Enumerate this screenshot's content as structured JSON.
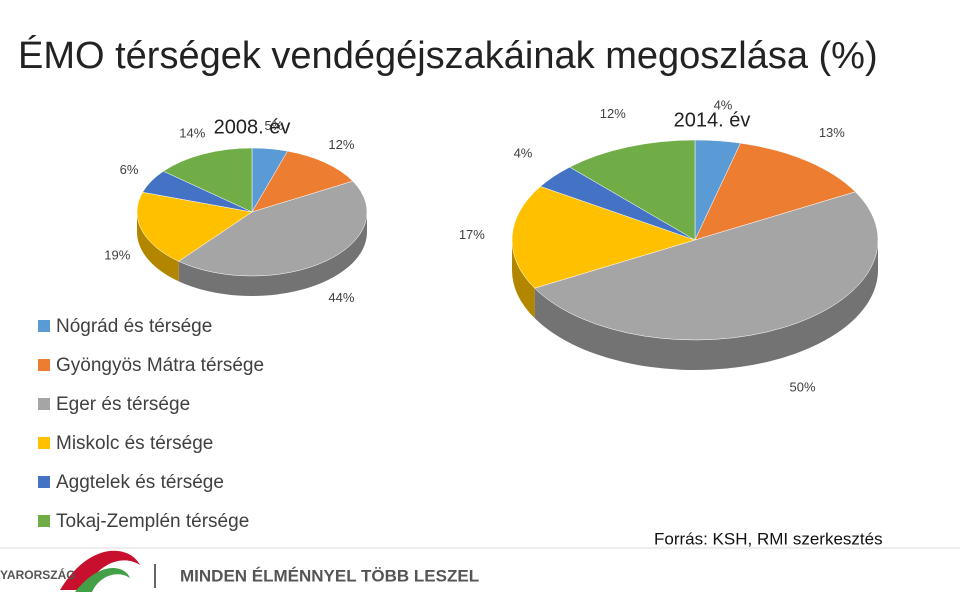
{
  "title": "ÉMO térségek vendégéjszakáinak megoszlása (%)",
  "chart_data": [
    {
      "type": "pie",
      "title": "2008. év",
      "categories": [
        "Nógrád és térsége",
        "Gyöngyös Mátra térsége",
        "Eger és térsége",
        "Miskolc és térsége",
        "Aggtelek és térsége",
        "Tokaj-Zemplén térsége"
      ],
      "values": [
        5,
        12,
        44,
        19,
        6,
        14
      ],
      "value_labels": [
        "5%",
        "12%",
        "44%",
        "19%",
        "6%",
        "14%"
      ],
      "colors": [
        "#5b9bd5",
        "#ed7d31",
        "#a5a5a5",
        "#ffc000",
        "#4472c4",
        "#70ad47"
      ]
    },
    {
      "type": "pie",
      "title": "2014. év",
      "categories": [
        "Nógrád és térsége",
        "Gyöngyös Mátra térsége",
        "Eger és térsége",
        "Miskolc és térsége",
        "Aggtelek és térsége",
        "Tokaj-Zemplén térsége"
      ],
      "values": [
        4,
        13,
        50,
        17,
        4,
        12
      ],
      "value_labels": [
        "4%",
        "13%",
        "50%",
        "17%",
        "4%",
        "12%"
      ],
      "colors": [
        "#5b9bd5",
        "#ed7d31",
        "#a5a5a5",
        "#ffc000",
        "#4472c4",
        "#70ad47"
      ]
    }
  ],
  "source": "Forrás: KSH, RMI szerkesztés",
  "footer": {
    "logo": "YARORSZÁG",
    "slogan": "MINDEN ÉLMÉNNYEL TÖBB LESZEL"
  }
}
